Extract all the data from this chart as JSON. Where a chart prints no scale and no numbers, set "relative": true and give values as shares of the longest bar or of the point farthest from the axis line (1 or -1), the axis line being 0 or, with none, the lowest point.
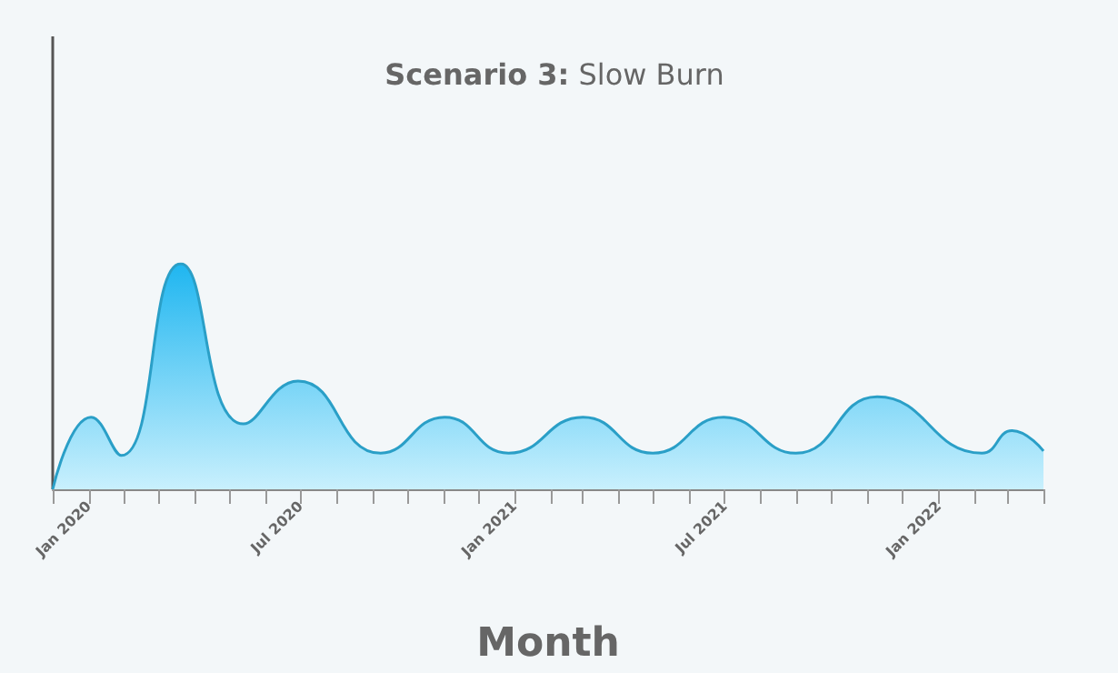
{
  "chart_data": {
    "type": "area",
    "title": "Scenario 3: Slow Burn",
    "xlabel": "Month",
    "relative": true,
    "grid": false,
    "marker": "none",
    "x": [
      "2019-12-01",
      "2020-01-03",
      "2020-01-29",
      "2020-03-20",
      "2020-05-13",
      "2020-06-29",
      "2020-09-08",
      "2020-11-02",
      "2020-12-27",
      "2021-03-01",
      "2021-04-30",
      "2021-06-30",
      "2021-08-31",
      "2021-11-09",
      "2022-02-07",
      "2022-03-05",
      "2022-04-01"
    ],
    "series": [
      {
        "color": "#2a9fc7",
        "values": [
          0,
          0.32,
          0.15,
          1,
          0.29,
          0.48,
          0.16,
          0.32,
          0.16,
          0.32,
          0.16,
          0.32,
          0.16,
          0.41,
          0.16,
          0.26,
          0.17
        ]
      }
    ],
    "xlim": [
      "2019-12",
      "2022-04"
    ],
    "xticks": [
      {
        "value": "2019-12",
        "label": null
      },
      {
        "value": "2020-01",
        "label": "Jan 2020"
      },
      {
        "value": "2020-02",
        "label": null
      },
      {
        "value": "2020-03",
        "label": null
      },
      {
        "value": "2020-04",
        "label": null
      },
      {
        "value": "2020-05",
        "label": null
      },
      {
        "value": "2020-06",
        "label": null
      },
      {
        "value": "2020-07",
        "label": "Jul 2020"
      },
      {
        "value": "2020-08",
        "label": null
      },
      {
        "value": "2020-09",
        "label": null
      },
      {
        "value": "2020-10",
        "label": null
      },
      {
        "value": "2020-11",
        "label": null
      },
      {
        "value": "2020-12",
        "label": null
      },
      {
        "value": "2021-01",
        "label": "Jan 2021"
      },
      {
        "value": "2021-02",
        "label": null
      },
      {
        "value": "2021-03",
        "label": null
      },
      {
        "value": "2021-04",
        "label": null
      },
      {
        "value": "2021-05",
        "label": null
      },
      {
        "value": "2021-06",
        "label": null
      },
      {
        "value": "2021-07",
        "label": "Jul 2021"
      },
      {
        "value": "2021-08",
        "label": null
      },
      {
        "value": "2021-09",
        "label": null
      },
      {
        "value": "2021-10",
        "label": null
      },
      {
        "value": "2021-11",
        "label": null
      },
      {
        "value": "2021-12",
        "label": null
      },
      {
        "value": "2022-01",
        "label": "Jan 2022"
      },
      {
        "value": "2022-02",
        "label": null
      },
      {
        "value": "2022-03",
        "label": null
      },
      {
        "value": "2022-04",
        "label": null
      }
    ]
  }
}
